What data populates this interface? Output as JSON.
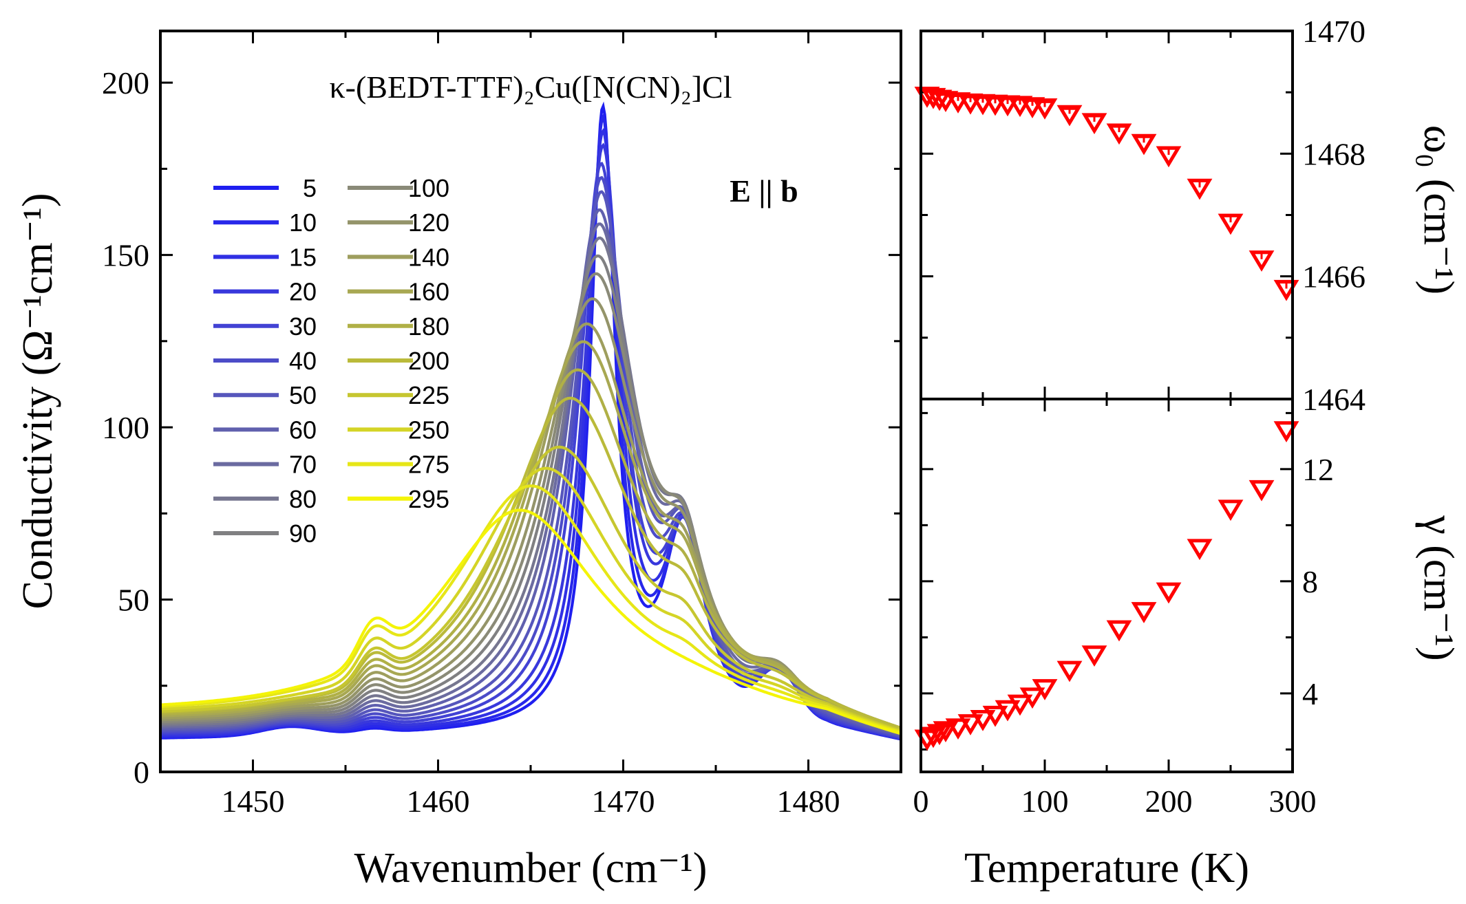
{
  "chart_data": [
    {
      "type": "line",
      "id": "conductivity",
      "title": "κ-(BEDT-TTF)₂Cu([N(CN)₂]Cl",
      "annotation": "E || b",
      "xlabel": "Wavenumber (cm⁻¹)",
      "ylabel": "Conductivity (Ω⁻¹cm⁻¹)",
      "xlim": [
        1445,
        1485
      ],
      "ylim": [
        0,
        215
      ],
      "xticks": [
        "1450",
        "1460",
        "1470",
        "1480"
      ],
      "yticks": [
        "0",
        "50",
        "100",
        "150",
        "200"
      ],
      "legend_title": "",
      "series": [
        {
          "name": "5",
          "color": "#1f1ff0",
          "peak_position": 1468.9,
          "peak_value": 187
        },
        {
          "name": "10",
          "color": "#2828ea",
          "peak_position": 1468.9,
          "peak_value": 184
        },
        {
          "name": "15",
          "color": "#3030e4",
          "peak_position": 1468.9,
          "peak_value": 180
        },
        {
          "name": "20",
          "color": "#3838dc",
          "peak_position": 1468.9,
          "peak_value": 176
        },
        {
          "name": "30",
          "color": "#4242d4",
          "peak_position": 1468.8,
          "peak_value": 171
        },
        {
          "name": "40",
          "color": "#4c4cc8",
          "peak_position": 1468.8,
          "peak_value": 167
        },
        {
          "name": "50",
          "color": "#5656bc",
          "peak_position": 1468.8,
          "peak_value": 163
        },
        {
          "name": "60",
          "color": "#6060ae",
          "peak_position": 1468.7,
          "peak_value": 158
        },
        {
          "name": "70",
          "color": "#6b6ba0",
          "peak_position": 1468.7,
          "peak_value": 154
        },
        {
          "name": "80",
          "color": "#767690",
          "peak_position": 1468.7,
          "peak_value": 150
        },
        {
          "name": "90",
          "color": "#808082",
          "peak_position": 1468.6,
          "peak_value": 145
        },
        {
          "name": "100",
          "color": "#8a8a78",
          "peak_position": 1468.5,
          "peak_value": 140
        },
        {
          "name": "120",
          "color": "#94946a",
          "peak_position": 1468.3,
          "peak_value": 133
        },
        {
          "name": "140",
          "color": "#9e9e5e",
          "peak_position": 1468.0,
          "peak_value": 126
        },
        {
          "name": "160",
          "color": "#a8a852",
          "peak_position": 1467.8,
          "peak_value": 121
        },
        {
          "name": "180",
          "color": "#b0b046",
          "peak_position": 1467.5,
          "peak_value": 113
        },
        {
          "name": "200",
          "color": "#baba3a",
          "peak_position": 1467.1,
          "peak_value": 105
        },
        {
          "name": "225",
          "color": "#c6c630",
          "peak_position": 1466.5,
          "peak_value": 91
        },
        {
          "name": "250",
          "color": "#d4d426",
          "peak_position": 1465.8,
          "peak_value": 85
        },
        {
          "name": "275",
          "color": "#e6e618",
          "peak_position": 1465.0,
          "peak_value": 80
        },
        {
          "name": "295",
          "color": "#f4f408",
          "peak_position": 1464.4,
          "peak_value": 73
        }
      ]
    },
    {
      "type": "scatter",
      "id": "omega0",
      "xlabel": "",
      "ylabel": "ω₀ (cm⁻¹)",
      "xlim": [
        0,
        300
      ],
      "ylim": [
        1464,
        1470
      ],
      "yticks": [
        "1464",
        "1466",
        "1468",
        "1470"
      ],
      "marker": "open-down-triangle",
      "color": "#ff0000",
      "x": [
        5,
        10,
        15,
        20,
        30,
        40,
        50,
        60,
        70,
        80,
        90,
        100,
        120,
        140,
        160,
        180,
        200,
        225,
        250,
        275,
        295
      ],
      "y": [
        1468.95,
        1468.93,
        1468.9,
        1468.88,
        1468.86,
        1468.84,
        1468.83,
        1468.82,
        1468.81,
        1468.8,
        1468.78,
        1468.76,
        1468.65,
        1468.52,
        1468.35,
        1468.18,
        1467.98,
        1467.45,
        1466.88,
        1466.28,
        1465.8
      ],
      "yerr": [
        0.08,
        0.08,
        0.08,
        0.08,
        0.08,
        0.08,
        0.08,
        0.08,
        0.08,
        0.08,
        0.08,
        0.08,
        0.08,
        0.09,
        0.09,
        0.09,
        0.1,
        0.1,
        0.1,
        0.1,
        0.1
      ]
    },
    {
      "type": "scatter",
      "id": "gamma",
      "xlabel": "Temperature (K)",
      "ylabel": "γ (cm⁻¹)",
      "xlim": [
        0,
        300
      ],
      "ylim": [
        1.2,
        14.5
      ],
      "xticks": [
        "0",
        "100",
        "200",
        "300"
      ],
      "yticks": [
        "4",
        "8",
        "12"
      ],
      "marker": "open-down-triangle",
      "color": "#ff0000",
      "x": [
        5,
        10,
        15,
        20,
        30,
        40,
        50,
        60,
        70,
        80,
        90,
        100,
        120,
        140,
        160,
        180,
        200,
        225,
        250,
        275,
        295
      ],
      "y": [
        2.4,
        2.5,
        2.6,
        2.7,
        2.8,
        2.95,
        3.1,
        3.25,
        3.45,
        3.65,
        3.9,
        4.2,
        4.85,
        5.4,
        6.3,
        6.95,
        7.65,
        9.2,
        10.6,
        11.3,
        13.4
      ]
    }
  ]
}
